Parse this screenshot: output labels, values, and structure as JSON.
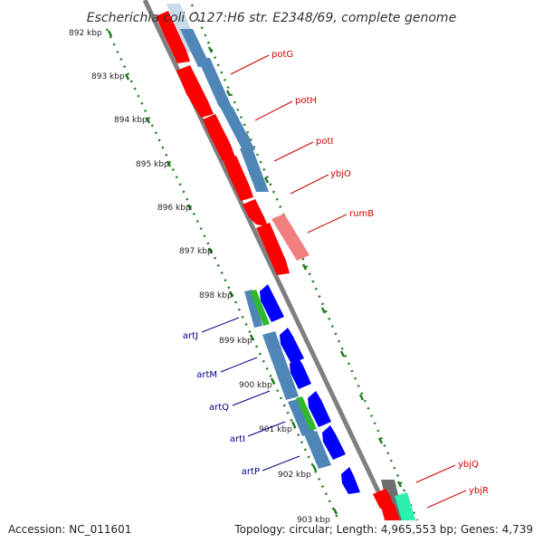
{
  "title": "Escherichia coli O127:H6 str. E2348/69, complete genome",
  "accession_text": "Accession: NC_011601",
  "summary_text": "Topology: circular; Length: 4,965,553 bp; Genes: 4,739",
  "ticks": [
    {
      "label": "892 kbp"
    },
    {
      "label": "893 kbp"
    },
    {
      "label": "894 kbp"
    },
    {
      "label": "895 kbp"
    },
    {
      "label": "896 kbp"
    },
    {
      "label": "897 kbp"
    },
    {
      "label": "898 kbp"
    },
    {
      "label": "899 kbp"
    },
    {
      "label": "900 kbp"
    },
    {
      "label": "901 kbp"
    },
    {
      "label": "902 kbp"
    },
    {
      "label": "903 kbp"
    }
  ],
  "genes_forward": [
    {
      "name": "potG"
    },
    {
      "name": "potH"
    },
    {
      "name": "potI"
    },
    {
      "name": "ybjO"
    },
    {
      "name": "rumB"
    },
    {
      "name": "ybjQ"
    },
    {
      "name": "ybjR"
    }
  ],
  "genes_reverse": [
    {
      "name": "artJ"
    },
    {
      "name": "artM"
    },
    {
      "name": "artQ"
    },
    {
      "name": "artI"
    },
    {
      "name": "artP"
    }
  ],
  "colors": {
    "backbone": "#7f7f7f",
    "cds_forward": "#ff0000",
    "cds_reverse": "#0000ff",
    "gene_bar": "#4f86b8",
    "rna": "#2fb82f",
    "pseudo": "#f08080",
    "ticks": "#1e7a1e",
    "label_forward": "#cc0000",
    "label_reverse": "#00008b"
  }
}
